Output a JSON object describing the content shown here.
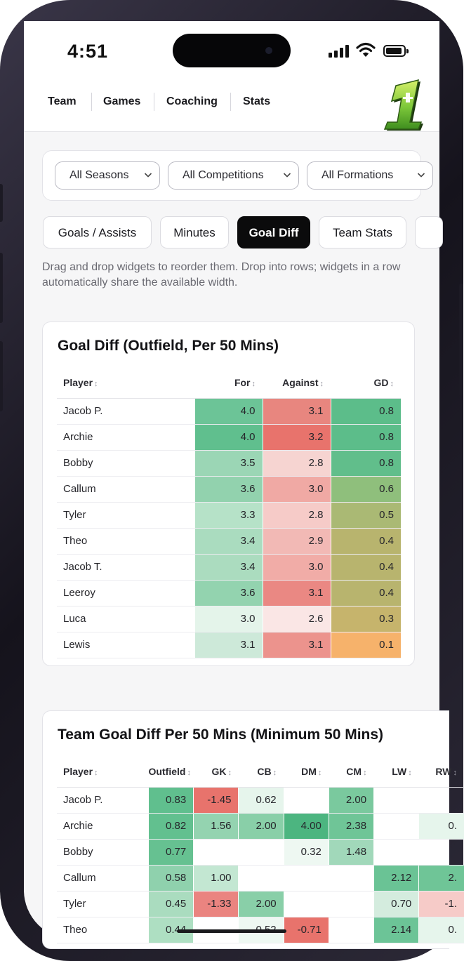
{
  "status_bar": {
    "time": "4:51"
  },
  "nav": {
    "items": [
      "Team",
      "Games",
      "Coaching",
      "Stats"
    ]
  },
  "filters": {
    "seasons": "All Seasons",
    "competitions": "All Competitions",
    "formations": "All Formations"
  },
  "tabs": [
    "Goals / Assists",
    "Minutes",
    "Goal Diff",
    "Team Stats"
  ],
  "active_tab": "Goal Diff",
  "hint": "Drag and drop widgets to reorder them. Drop into rows; widgets in a row automatically share the available width.",
  "colors": {
    "green_strong": "#5cbd8a",
    "red_strong": "#e8736c",
    "orange": "#f6b26b",
    "olive": "#b8b46e"
  },
  "widget_goal_diff": {
    "title": "Goal Diff (Outfield, Per 50 Mins)",
    "columns": [
      "Player",
      "For",
      "Against",
      "GD"
    ],
    "rows": [
      {
        "player": "Jacob P.",
        "for": "4.0",
        "against": "3.1",
        "gd": "0.8"
      },
      {
        "player": "Archie",
        "for": "4.0",
        "against": "3.2",
        "gd": "0.8"
      },
      {
        "player": "Bobby",
        "for": "3.5",
        "against": "2.8",
        "gd": "0.8"
      },
      {
        "player": "Callum",
        "for": "3.6",
        "against": "3.0",
        "gd": "0.6"
      },
      {
        "player": "Tyler",
        "for": "3.3",
        "against": "2.8",
        "gd": "0.5"
      },
      {
        "player": "Theo",
        "for": "3.4",
        "against": "2.9",
        "gd": "0.4"
      },
      {
        "player": "Jacob T.",
        "for": "3.4",
        "against": "3.0",
        "gd": "0.4"
      },
      {
        "player": "Leeroy",
        "for": "3.6",
        "against": "3.1",
        "gd": "0.4"
      },
      {
        "player": "Luca",
        "for": "3.0",
        "against": "2.6",
        "gd": "0.3"
      },
      {
        "player": "Lewis",
        "for": "3.1",
        "against": "3.1",
        "gd": "0.1"
      }
    ]
  },
  "widget_team_goal_diff": {
    "title": "Team Goal Diff Per 50 Mins (Minimum 50 Mins)",
    "columns": [
      "Player",
      "Outfield",
      "GK",
      "CB",
      "DM",
      "CM",
      "LW",
      "RW"
    ],
    "rows": [
      {
        "player": "Jacob P.",
        "cells": [
          "0.83",
          "-1.45",
          "0.62",
          "",
          "2.00",
          "",
          ""
        ]
      },
      {
        "player": "Archie",
        "cells": [
          "0.82",
          "1.56",
          "2.00",
          "4.00",
          "2.38",
          "",
          "0."
        ]
      },
      {
        "player": "Bobby",
        "cells": [
          "0.77",
          "",
          "",
          "0.32",
          "1.48",
          "",
          ""
        ]
      },
      {
        "player": "Callum",
        "cells": [
          "0.58",
          "1.00",
          "",
          "",
          "",
          "2.12",
          "2."
        ]
      },
      {
        "player": "Tyler",
        "cells": [
          "0.45",
          "-1.33",
          "2.00",
          "",
          "",
          "0.70",
          "-1."
        ]
      },
      {
        "player": "Theo",
        "cells": [
          "0.44",
          "",
          "0.52",
          "-0.71",
          "",
          "2.14",
          "0."
        ]
      }
    ]
  }
}
